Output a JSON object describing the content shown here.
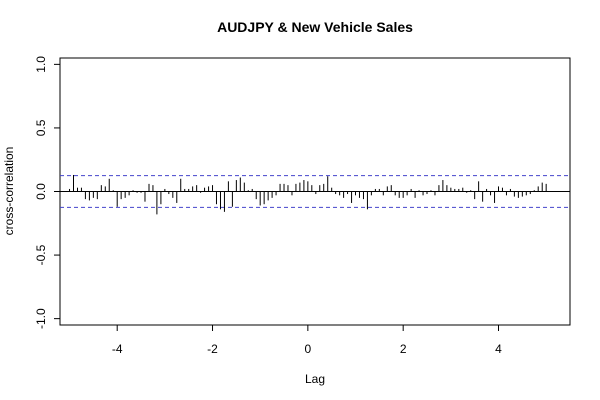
{
  "chart_data": {
    "type": "bar",
    "title": "AUDJPY & New Vehicle Sales",
    "xlabel": "Lag",
    "ylabel": "cross-correlation",
    "xlim": [
      -5.2,
      5.5
    ],
    "ylim": [
      -1.05,
      1.05
    ],
    "x_ticks": [
      -4,
      -2,
      0,
      2,
      4
    ],
    "x_tick_labels": [
      "-4",
      "-2",
      "0",
      "2",
      "4"
    ],
    "y_ticks": [
      -1.0,
      -0.5,
      0.0,
      0.5,
      1.0
    ],
    "y_tick_labels": [
      "-1.0",
      "-0.5",
      "0.0",
      "0.5",
      "1.0"
    ],
    "confidence_band": 0.125,
    "lag_step": 0.0833,
    "lags": [
      -5.0,
      -4.917,
      -4.833,
      -4.75,
      -4.667,
      -4.583,
      -4.5,
      -4.417,
      -4.333,
      -4.25,
      -4.167,
      -4.083,
      -4.0,
      -3.917,
      -3.833,
      -3.75,
      -3.667,
      -3.583,
      -3.5,
      -3.417,
      -3.333,
      -3.25,
      -3.167,
      -3.083,
      -3.0,
      -2.917,
      -2.833,
      -2.75,
      -2.667,
      -2.583,
      -2.5,
      -2.417,
      -2.333,
      -2.25,
      -2.167,
      -2.083,
      -2.0,
      -1.917,
      -1.833,
      -1.75,
      -1.667,
      -1.583,
      -1.5,
      -1.417,
      -1.333,
      -1.25,
      -1.167,
      -1.083,
      -1.0,
      -0.917,
      -0.833,
      -0.75,
      -0.667,
      -0.583,
      -0.5,
      -0.417,
      -0.333,
      -0.25,
      -0.167,
      -0.083,
      0.0,
      0.083,
      0.167,
      0.25,
      0.333,
      0.417,
      0.5,
      0.583,
      0.667,
      0.75,
      0.833,
      0.917,
      1.0,
      1.083,
      1.167,
      1.25,
      1.333,
      1.417,
      1.5,
      1.583,
      1.667,
      1.75,
      1.833,
      1.917,
      2.0,
      2.083,
      2.167,
      2.25,
      2.333,
      2.417,
      2.5,
      2.583,
      2.667,
      2.75,
      2.833,
      2.917,
      3.0,
      3.083,
      3.167,
      3.25,
      3.333,
      3.417,
      3.5,
      3.583,
      3.667,
      3.75,
      3.833,
      3.917,
      4.0,
      4.083,
      4.167,
      4.25,
      4.333,
      4.417,
      4.5,
      4.583,
      4.667,
      4.75,
      4.833,
      4.917,
      5.0
    ],
    "values": [
      0.02,
      0.13,
      0.03,
      0.03,
      -0.06,
      -0.07,
      -0.05,
      -0.06,
      0.05,
      0.04,
      0.1,
      0.01,
      -0.12,
      -0.06,
      -0.05,
      -0.03,
      0.01,
      -0.01,
      -0.01,
      -0.08,
      0.06,
      0.05,
      -0.18,
      -0.1,
      0.02,
      -0.02,
      -0.05,
      -0.09,
      0.1,
      0.02,
      0.02,
      0.04,
      0.05,
      -0.01,
      0.03,
      0.04,
      0.05,
      -0.1,
      -0.14,
      -0.16,
      0.08,
      -0.12,
      0.09,
      0.11,
      0.07,
      0.01,
      0.02,
      -0.06,
      -0.11,
      -0.1,
      -0.07,
      -0.05,
      -0.03,
      0.06,
      0.06,
      0.05,
      -0.03,
      0.06,
      0.07,
      0.09,
      0.08,
      0.05,
      -0.02,
      0.05,
      0.06,
      0.12,
      0.03,
      -0.02,
      -0.03,
      -0.05,
      -0.02,
      -0.09,
      -0.03,
      -0.05,
      -0.06,
      -0.14,
      -0.03,
      0.02,
      0.02,
      -0.03,
      0.04,
      0.05,
      -0.03,
      -0.05,
      -0.05,
      -0.03,
      0.02,
      -0.05,
      0.01,
      -0.03,
      -0.02,
      0.01,
      -0.03,
      0.05,
      0.09,
      0.05,
      0.03,
      0.02,
      0.02,
      0.03,
      -0.01,
      0.01,
      -0.06,
      0.08,
      -0.08,
      0.02,
      -0.03,
      -0.09,
      0.04,
      0.03,
      -0.03,
      0.02,
      -0.04,
      -0.05,
      -0.04,
      -0.03,
      -0.02,
      0.01,
      0.04,
      0.07,
      0.06
    ],
    "colors": {
      "bars": "#000000",
      "frame": "#000000",
      "zero_line": "#000000",
      "band": "#4444cc"
    },
    "band_style": "dashed",
    "grid": false
  }
}
